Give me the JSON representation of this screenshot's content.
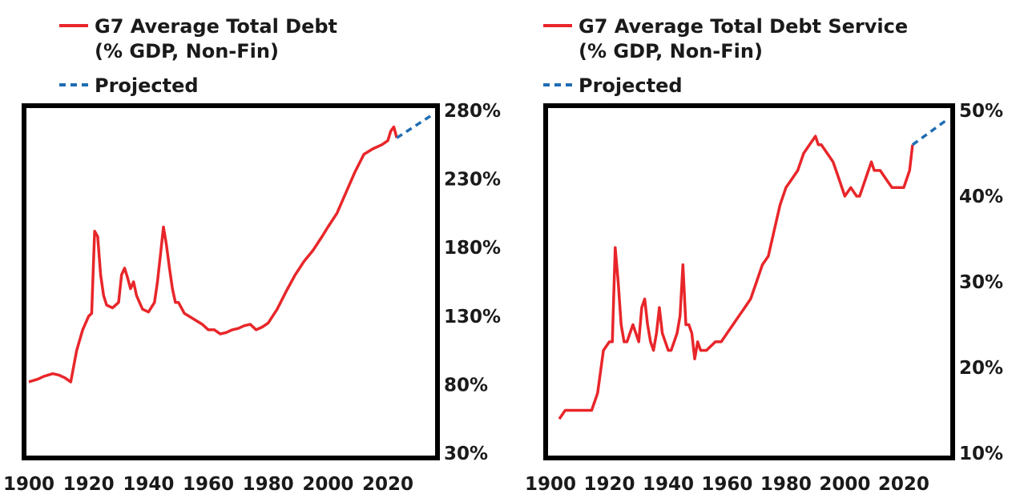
{
  "chart_data": [
    {
      "type": "line",
      "title": "",
      "xlabel": "",
      "ylabel": "",
      "xlim": [
        1900,
        2035
      ],
      "ylim": [
        30,
        280
      ],
      "x_ticks": [
        1900,
        1920,
        1940,
        1960,
        1980,
        2000,
        2020
      ],
      "y_ticks": [
        30,
        80,
        130,
        180,
        230,
        280
      ],
      "y_tick_labels": [
        "30%",
        "80%",
        "130%",
        "180%",
        "230%",
        "280%"
      ],
      "y_axis_side": "right",
      "grid": false,
      "legend_position": "top-left",
      "series": [
        {
          "name": "G7 Average Total Debt\n(% GDP, Non-Fin)",
          "legend_lines": [
            "G7 Average Total Debt",
            "(% GDP, Non-Fin)"
          ],
          "style": "solid",
          "color": "#e8262a",
          "x": [
            1900,
            1903,
            1905,
            1908,
            1910,
            1912,
            1914,
            1916,
            1918,
            1920,
            1921,
            1922,
            1923,
            1924,
            1925,
            1926,
            1928,
            1930,
            1931,
            1932,
            1933,
            1934,
            1935,
            1936,
            1937,
            1938,
            1940,
            1942,
            1943,
            1944,
            1945,
            1946,
            1947,
            1948,
            1949,
            1950,
            1952,
            1955,
            1958,
            1960,
            1962,
            1964,
            1966,
            1968,
            1970,
            1972,
            1974,
            1976,
            1978,
            1980,
            1983,
            1986,
            1989,
            1992,
            1995,
            1998,
            2000,
            2003,
            2006,
            2009,
            2012,
            2015,
            2018,
            2020,
            2021,
            2022,
            2023
          ],
          "values": [
            82,
            84,
            86,
            88,
            87,
            85,
            82,
            105,
            120,
            130,
            132,
            192,
            188,
            160,
            145,
            138,
            136,
            140,
            160,
            165,
            158,
            150,
            155,
            145,
            140,
            135,
            133,
            140,
            155,
            175,
            195,
            182,
            165,
            150,
            140,
            140,
            132,
            128,
            124,
            120,
            120,
            117,
            118,
            120,
            121,
            123,
            124,
            120,
            122,
            125,
            135,
            148,
            160,
            170,
            178,
            188,
            195,
            205,
            220,
            235,
            248,
            252,
            255,
            258,
            265,
            268,
            260
          ]
        },
        {
          "name": "Projected",
          "legend_lines": [
            "Projected"
          ],
          "style": "dashed",
          "color": "#1f6db3",
          "x": [
            2023,
            2035
          ],
          "values": [
            260,
            277
          ]
        }
      ]
    },
    {
      "type": "line",
      "title": "",
      "xlabel": "",
      "ylabel": "",
      "xlim": [
        1900,
        2035
      ],
      "ylim": [
        10,
        50
      ],
      "x_ticks": [
        1900,
        1920,
        1940,
        1960,
        1980,
        2000,
        2020
      ],
      "y_ticks": [
        10,
        20,
        30,
        40,
        50
      ],
      "y_tick_labels": [
        "10%",
        "20%",
        "30%",
        "40%",
        "50%"
      ],
      "y_axis_side": "right",
      "grid": false,
      "legend_position": "top-left",
      "series": [
        {
          "name": "G7 Average Total Debt Service\n(% GDP, Non-Fin)",
          "legend_lines": [
            "G7 Average Total Debt Service",
            "(% GDP, Non-Fin)"
          ],
          "style": "solid",
          "color": "#e8262a",
          "x": [
            1903,
            1905,
            1907,
            1910,
            1912,
            1914,
            1916,
            1918,
            1920,
            1921,
            1922,
            1923,
            1924,
            1925,
            1926,
            1928,
            1930,
            1931,
            1932,
            1933,
            1934,
            1935,
            1936,
            1937,
            1938,
            1940,
            1941,
            1942,
            1943,
            1944,
            1945,
            1946,
            1947,
            1948,
            1949,
            1950,
            1951,
            1953,
            1956,
            1958,
            1960,
            1962,
            1964,
            1966,
            1968,
            1970,
            1972,
            1974,
            1976,
            1978,
            1980,
            1982,
            1984,
            1986,
            1988,
            1990,
            1991,
            1992,
            1994,
            1996,
            1998,
            2000,
            2002,
            2004,
            2005,
            2006,
            2008,
            2009,
            2010,
            2012,
            2014,
            2016,
            2018,
            2020,
            2022,
            2023
          ],
          "values": [
            14,
            15,
            15,
            15,
            15,
            15,
            17,
            22,
            23,
            23,
            34,
            30,
            25,
            23,
            23,
            25,
            23,
            27,
            28,
            25,
            23,
            22,
            24,
            27,
            24,
            22,
            22,
            23,
            24,
            26,
            32,
            25,
            25,
            24,
            21,
            23,
            22,
            22,
            23,
            23,
            24,
            25,
            26,
            27,
            28,
            30,
            32,
            33,
            36,
            39,
            41,
            42,
            43,
            45,
            46,
            47,
            46,
            46,
            45,
            44,
            42,
            40,
            41,
            40,
            40,
            41,
            43,
            44,
            43,
            43,
            42,
            41,
            41,
            41,
            43,
            46
          ]
        },
        {
          "name": "Projected",
          "legend_lines": [
            "Projected"
          ],
          "style": "dashed",
          "color": "#1f6db3",
          "x": [
            2023,
            2035
          ],
          "values": [
            46,
            49
          ]
        }
      ]
    }
  ]
}
